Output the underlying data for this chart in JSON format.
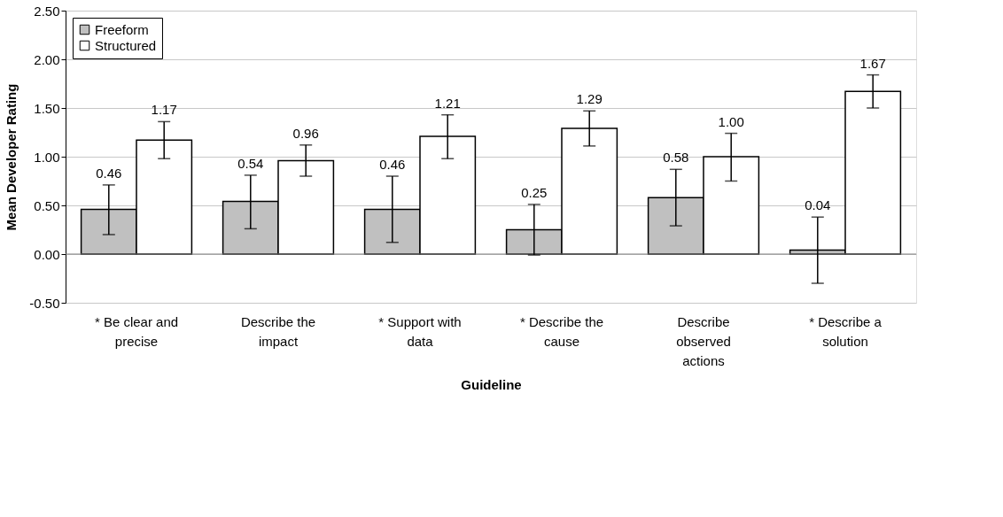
{
  "chart_data": {
    "type": "bar",
    "xlabel": "Guideline",
    "ylabel": "Mean Developer Rating",
    "categories": [
      "* Be clear and precise",
      "Describe the impact",
      "* Support with data",
      "* Describe the cause",
      "Describe observed actions",
      "* Describe a solution"
    ],
    "series": [
      {
        "name": "Freeform",
        "color": "#c0c0c0",
        "values": [
          0.46,
          0.54,
          0.46,
          0.25,
          0.58,
          0.04
        ],
        "value_labels": [
          "0.46",
          "0.54",
          "0.46",
          "0.25",
          "0.58",
          "0.04"
        ],
        "errors": [
          [
            0.2,
            0.71
          ],
          [
            0.26,
            0.81
          ],
          [
            0.12,
            0.8
          ],
          [
            -0.01,
            0.51
          ],
          [
            0.29,
            0.87
          ],
          [
            -0.3,
            0.38
          ]
        ]
      },
      {
        "name": "Structured",
        "color": "#ffffff",
        "values": [
          1.17,
          0.96,
          1.21,
          1.29,
          1.0,
          1.67
        ],
        "value_labels": [
          "1.17",
          "0.96",
          "1.21",
          "1.29",
          "1.00",
          "1.67"
        ],
        "errors": [
          [
            0.98,
            1.36
          ],
          [
            0.8,
            1.12
          ],
          [
            0.98,
            1.43
          ],
          [
            1.11,
            1.47
          ],
          [
            0.75,
            1.24
          ],
          [
            1.5,
            1.84
          ]
        ]
      }
    ],
    "ylim": [
      -0.5,
      2.5
    ],
    "yticks": [
      {
        "value": -0.5,
        "label": "-0.50"
      },
      {
        "value": 0,
        "label": "0.00"
      },
      {
        "value": 0.5,
        "label": "0.50"
      },
      {
        "value": 1,
        "label": "1.00"
      },
      {
        "value": 1.5,
        "label": "1.50"
      },
      {
        "value": 2,
        "label": "2.00"
      },
      {
        "value": 2.5,
        "label": "2.50"
      }
    ],
    "grid": "y",
    "legend": "top left"
  }
}
